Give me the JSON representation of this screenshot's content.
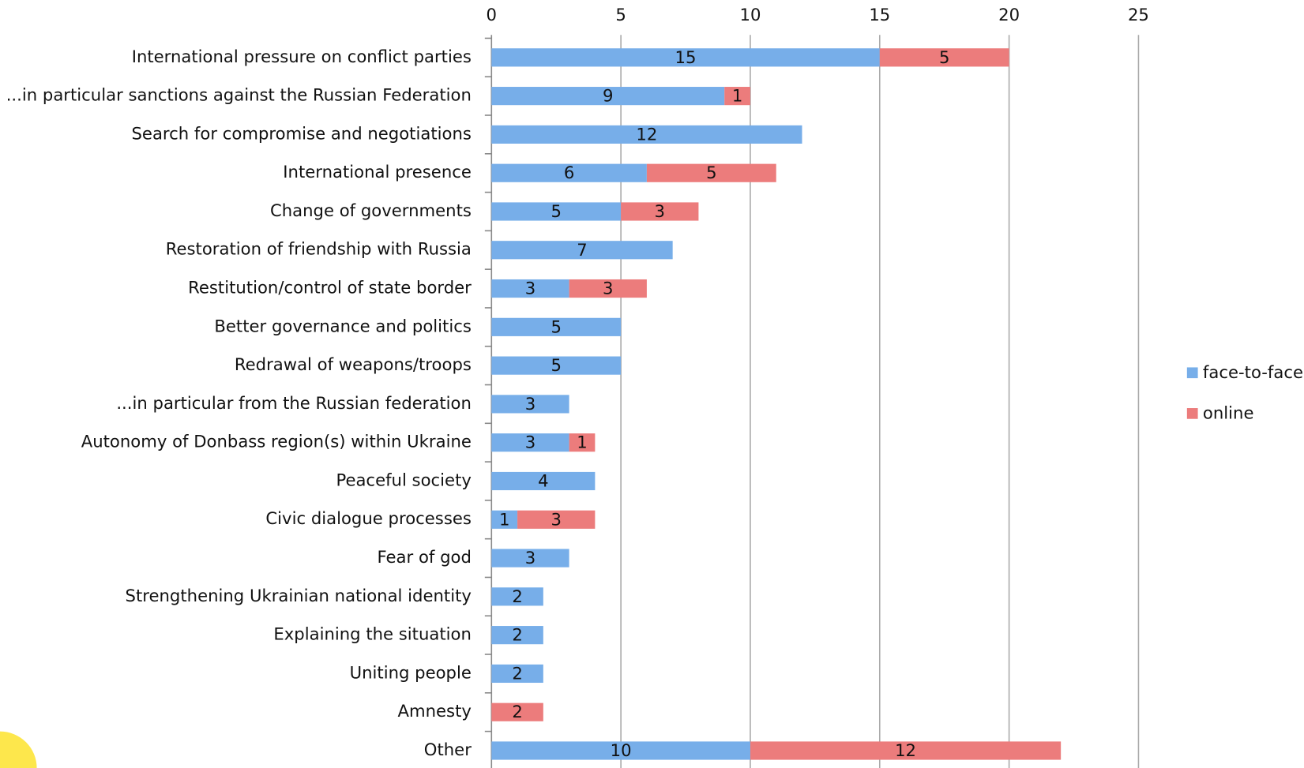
{
  "chart_data": {
    "type": "stacked-barh",
    "categories": [
      "International pressure on conflict parties",
      "...in particular sanctions against the Russian Federation",
      "Search for compromise and negotiations",
      "International presence",
      "Change of governments",
      "Restoration of friendship with Russia",
      "Restitution/control of state border",
      "Better governance and politics",
      "Redrawal of weapons/troops",
      "...in particular from the Russian federation",
      "Autonomy of Donbass region(s) within Ukraine",
      "Peaceful society",
      "Civic dialogue processes",
      "Fear of god",
      "Strengthening Ukrainian national identity",
      "Explaining the situation",
      "Uniting people",
      "Amnesty",
      "Other"
    ],
    "series": [
      {
        "name": "face-to-face",
        "color": "#77aee9",
        "values": [
          15,
          9,
          12,
          6,
          5,
          7,
          3,
          5,
          5,
          3,
          3,
          4,
          1,
          3,
          2,
          2,
          2,
          null,
          10
        ]
      },
      {
        "name": "online",
        "color": "#ec7c7c",
        "values": [
          5,
          1,
          null,
          5,
          3,
          null,
          3,
          null,
          null,
          null,
          1,
          null,
          3,
          null,
          null,
          null,
          null,
          2,
          12
        ]
      }
    ],
    "xlim": [
      0,
      25
    ],
    "xticks": [
      0,
      5,
      10,
      15,
      20,
      25
    ],
    "grid": true,
    "legend": "right"
  }
}
